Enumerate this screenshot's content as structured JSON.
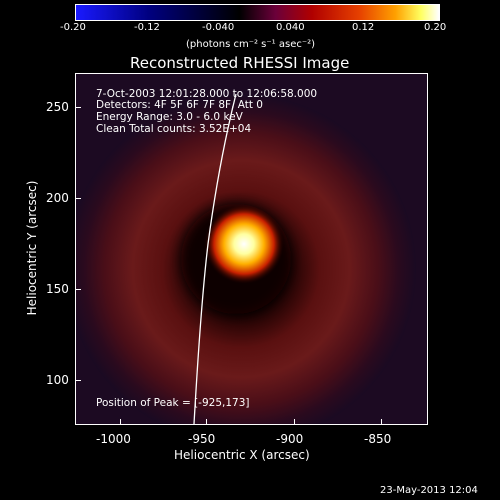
{
  "colorbar": {
    "ticks": [
      "-0.20",
      "-0.12",
      "-0.040",
      "0.040",
      "0.12",
      "0.20"
    ],
    "units_label": "(photons cm⁻² s⁻¹ asec⁻²)"
  },
  "plot": {
    "title": "Reconstructed RHESSI Image",
    "info": {
      "time_range": "7-Oct-2003 12:01:28.000 to 12:06:58.000",
      "detectors": "Detectors: 4F 5F 6F 7F 8F, Att 0",
      "energy": "Energy Range: 3.0 - 6.0 keV",
      "method": "Clean    Total counts: 3.52E+04"
    },
    "peak_label": "Position of Peak = [-925,173]",
    "x_axis": {
      "label": "Heliocentric X (arcsec)",
      "ticks": [
        "-1000",
        "-950",
        "-900",
        "-850"
      ]
    },
    "y_axis": {
      "label": "Heliocentric Y (arcsec)",
      "ticks": [
        "100",
        "150",
        "200",
        "250"
      ]
    }
  },
  "footer": {
    "timestamp": "23-May-2013 12:04"
  }
}
